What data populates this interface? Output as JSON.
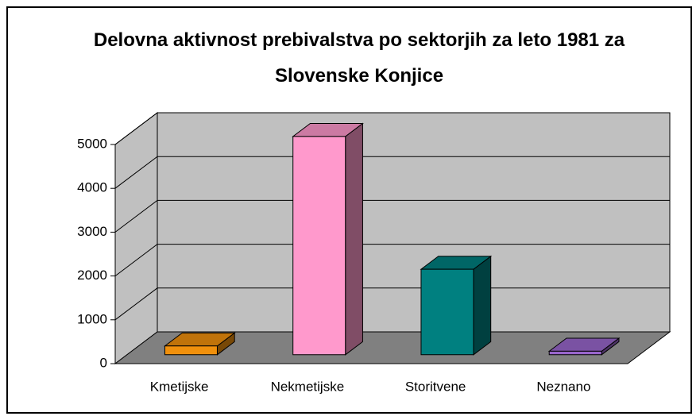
{
  "chart_data": {
    "type": "bar3d",
    "title": "Delovna aktivnost prebivalstva po sektorjih za leto 1981 za Slovenske Konjice",
    "categories": [
      "Kmetijske",
      "Nekmetijske",
      "Storitvene",
      "Neznano"
    ],
    "values": [
      200,
      4980,
      1950,
      80
    ],
    "colors": [
      "#f0900c",
      "#ff99cc",
      "#008080",
      "#9966cc"
    ],
    "ylim": [
      0,
      5000
    ],
    "yticks": [
      0,
      1000,
      2000,
      3000,
      4000,
      5000
    ],
    "grid": true
  }
}
